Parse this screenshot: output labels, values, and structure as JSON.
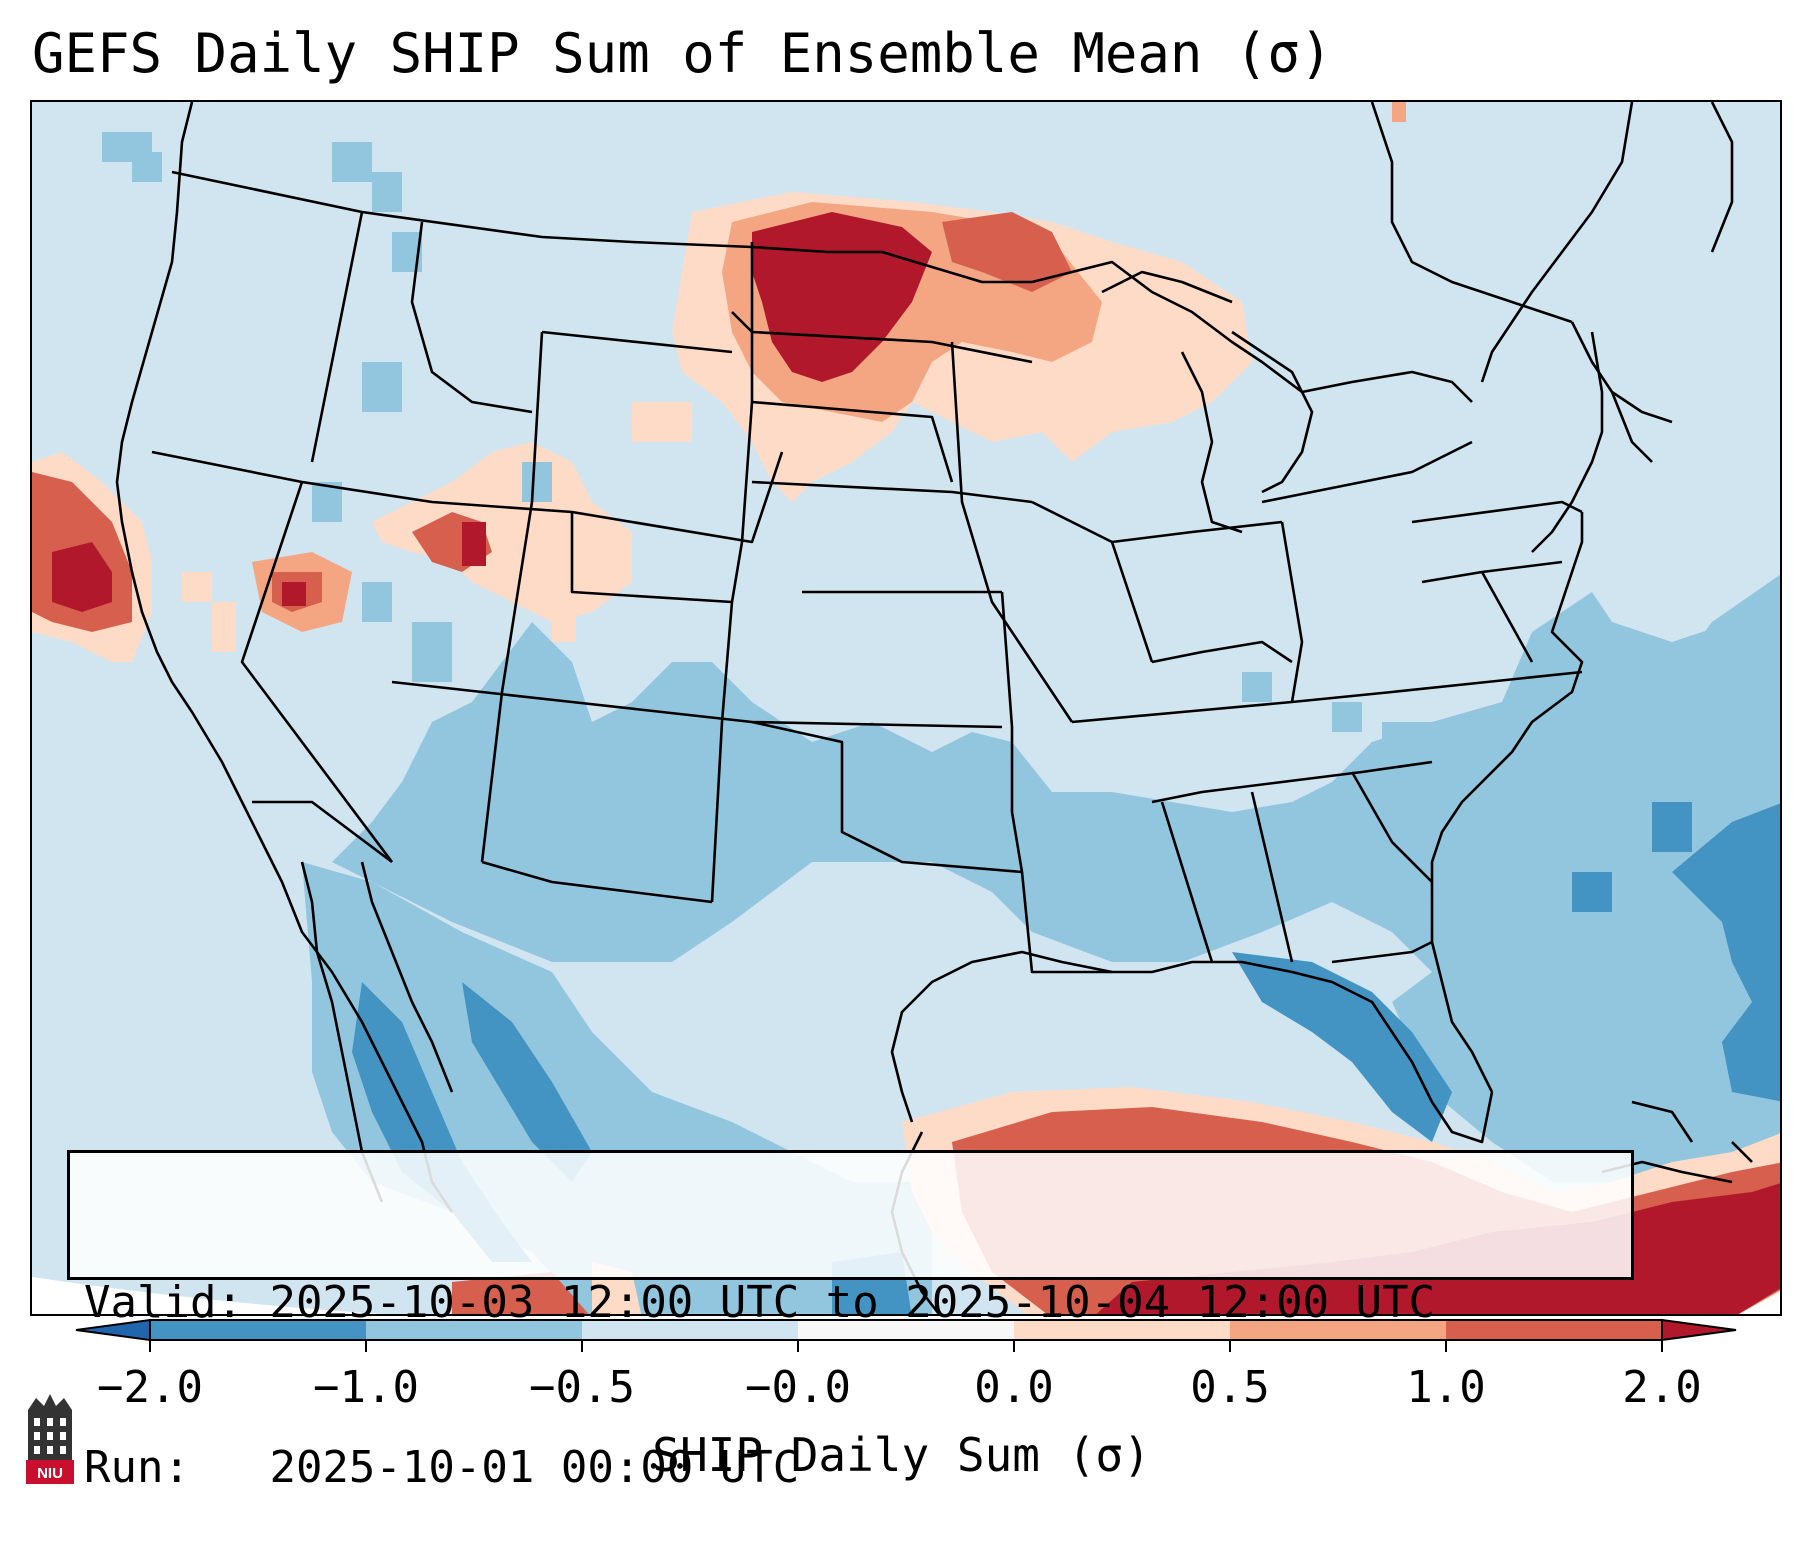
{
  "title": "GEFS Daily SHIP Sum of Ensemble Mean (σ)",
  "valid_label": "Valid:",
  "valid_range": "2025-10-03 12:00 UTC to 2025-10-04 12:00 UTC",
  "run_label": "Run:",
  "run_time": "2025-10-01 00:00 UTC",
  "colorbar": {
    "label": "SHIP Daily Sum (σ)",
    "ticks": [
      "−2.0",
      "−1.0",
      "−0.5",
      "−0.0",
      "0.0",
      "0.5",
      "1.0",
      "2.0"
    ],
    "colors": {
      "lt_neg2": "#2166ac",
      "neg2_to_neg1": "#4393c3",
      "neg1_to_neg05": "#92c5de",
      "neg05_to_0": "#d1e5f0",
      "zero": "#f7f7f7",
      "pos0_to_05": "#fddbc7",
      "pos05_to_1": "#f4a582",
      "pos1_to_2": "#d6604d",
      "gt_2": "#b2182b"
    }
  },
  "logo": {
    "text": "NIU",
    "color": "#c8102e"
  }
}
